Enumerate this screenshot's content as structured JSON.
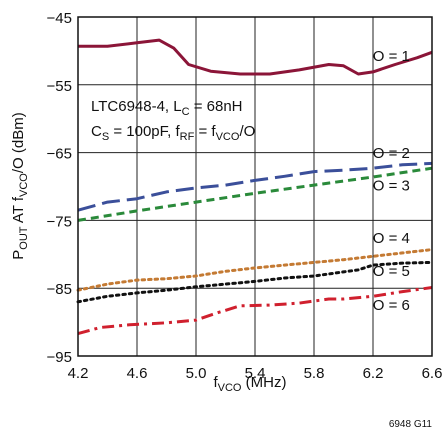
{
  "chart_data": {
    "type": "line",
    "xlabel": {
      "main": "f",
      "sub": "VCO",
      "rest": " (MHz)"
    },
    "ylabel": {
      "p1": "P",
      "s1": "OUT",
      "p2": " AT f",
      "s2": "VCO",
      "p3": "/O (dBm)"
    },
    "xlim": [
      4.2,
      6.6
    ],
    "ylim": [
      -95,
      -45
    ],
    "xticks": [
      "4.2",
      "4.6",
      "5.0",
      "5.4",
      "5.8",
      "6.2",
      "6.6"
    ],
    "yticks": [
      "−45",
      "−55",
      "−65",
      "−75",
      "−85",
      "−95"
    ],
    "grid": true,
    "annotation": {
      "line1": {
        "a": "LTC6948-4, L",
        "b": "C",
        "c": " = 68nH"
      },
      "line2": {
        "a": "C",
        "b": "S",
        "c": " = 100pF, f",
        "d": "RF",
        "e": " = f",
        "f": "VCO",
        "g": "/O"
      }
    },
    "figure_note": "6948 G11",
    "series": [
      {
        "name": "O = 1",
        "color": "#8b1538",
        "style": "solid",
        "x": [
          4.2,
          4.4,
          4.6,
          4.75,
          4.85,
          4.95,
          5.1,
          5.3,
          5.5,
          5.7,
          5.9,
          6.0,
          6.1,
          6.2,
          6.35,
          6.5,
          6.6
        ],
        "y": [
          -49.3,
          -49.3,
          -48.8,
          -48.4,
          -49.6,
          -52.0,
          -53.0,
          -53.4,
          -53.4,
          -52.8,
          -52.0,
          -52.2,
          -53.4,
          -53.1,
          -52.0,
          -51.0,
          -50.2
        ]
      },
      {
        "name": "O = 2",
        "color": "#3b4f9a",
        "style": "longdash",
        "x": [
          4.2,
          4.4,
          4.6,
          4.8,
          5.0,
          5.2,
          5.4,
          5.6,
          5.8,
          6.0,
          6.2,
          6.4,
          6.6
        ],
        "y": [
          -73.5,
          -72.3,
          -71.8,
          -70.8,
          -70.2,
          -69.8,
          -69.1,
          -68.5,
          -67.8,
          -67.6,
          -67.3,
          -66.8,
          -66.6
        ]
      },
      {
        "name": "O = 3",
        "color": "#2a8a3a",
        "style": "dash",
        "x": [
          4.2,
          4.6,
          5.0,
          5.4,
          5.8,
          6.2,
          6.6
        ],
        "y": [
          -75.0,
          -73.6,
          -72.3,
          -71.0,
          -69.8,
          -68.6,
          -67.3
        ]
      },
      {
        "name": "O = 4",
        "color": "#c47a33",
        "style": "dot",
        "x": [
          4.2,
          4.4,
          4.6,
          4.8,
          5.0,
          5.2,
          5.4,
          5.6,
          5.8,
          6.0,
          6.2,
          6.4,
          6.6
        ],
        "y": [
          -85.3,
          -84.4,
          -83.8,
          -83.6,
          -83.2,
          -82.5,
          -82.0,
          -81.6,
          -81.2,
          -80.8,
          -80.3,
          -79.8,
          -79.3
        ]
      },
      {
        "name": "O = 5",
        "color": "#111111",
        "style": "dot",
        "x": [
          4.2,
          4.4,
          4.6,
          4.8,
          5.0,
          5.2,
          5.4,
          5.6,
          5.8,
          6.0,
          6.1,
          6.2,
          6.4,
          6.6
        ],
        "y": [
          -87.0,
          -86.2,
          -85.7,
          -85.3,
          -84.8,
          -84.4,
          -84.0,
          -83.5,
          -83.2,
          -82.6,
          -82.3,
          -81.6,
          -81.3,
          -81.2
        ]
      },
      {
        "name": "O = 6",
        "color": "#d0202e",
        "style": "dashdot",
        "x": [
          4.2,
          4.35,
          4.55,
          4.8,
          5.0,
          5.15,
          5.3,
          5.5,
          5.7,
          5.9,
          6.0,
          6.2,
          6.4,
          6.6
        ],
        "y": [
          -91.7,
          -90.8,
          -90.4,
          -90.1,
          -89.7,
          -88.6,
          -87.6,
          -87.5,
          -87.2,
          -86.6,
          -86.6,
          -86.2,
          -85.5,
          -84.9
        ]
      }
    ],
    "series_labels": [
      {
        "text": "O = 1",
        "x": 6.45,
        "y": -51.5
      },
      {
        "text": "O = 2",
        "x": 6.45,
        "y": -65.8
      },
      {
        "text": "O = 3",
        "x": 6.45,
        "y": -70.6
      },
      {
        "text": "O = 4",
        "x": 6.45,
        "y": -78.3
      },
      {
        "text": "O = 5",
        "x": 6.45,
        "y": -83.2
      },
      {
        "text": "O = 6",
        "x": 6.45,
        "y": -88.2
      }
    ]
  }
}
